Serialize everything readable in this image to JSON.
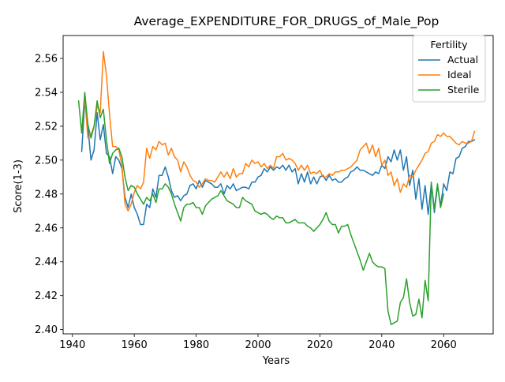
{
  "chart_data": {
    "type": "line",
    "title": "Average_EXPENDITURE_FOR_DRUGS_of_Male_Pop",
    "xlabel": "Years",
    "ylabel": "Score(1-3)",
    "xlim": [
      1937,
      2076
    ],
    "ylim": [
      2.3975,
      2.5735
    ],
    "xticks": [
      1940,
      1960,
      1980,
      2000,
      2020,
      2040,
      2060
    ],
    "yticks": [
      2.4,
      2.42,
      2.44,
      2.46,
      2.48,
      2.5,
      2.52,
      2.54,
      2.56
    ],
    "ytick_labels": [
      "2.40",
      "2.42",
      "2.44",
      "2.46",
      "2.48",
      "2.50",
      "2.52",
      "2.54",
      "2.56"
    ],
    "grid": false,
    "legend": {
      "title": "Fertility",
      "placement": "top-right"
    },
    "series": [
      {
        "name": "Actual",
        "color": "#1f77b4",
        "x": [
          1943,
          1944,
          1945,
          1946,
          1947,
          1948,
          1949,
          1950,
          1951,
          1952,
          1953,
          1954,
          1955,
          1956,
          1957,
          1958,
          1959,
          1960,
          1961,
          1962,
          1963,
          1964,
          1965,
          1966,
          1967,
          1968,
          1969,
          1970,
          1971,
          1972,
          1973,
          1974,
          1975,
          1976,
          1977,
          1978,
          1979,
          1980,
          1981,
          1982,
          1983,
          1984,
          1985,
          1986,
          1987,
          1988,
          1989,
          1990,
          1991,
          1992,
          1993,
          1994,
          1995,
          1996,
          1997,
          1998,
          1999,
          2000,
          2001,
          2002,
          2003,
          2004,
          2005,
          2006,
          2007,
          2008,
          2009,
          2010,
          2011,
          2012,
          2013,
          2014,
          2015,
          2016,
          2017,
          2018,
          2019,
          2020,
          2021,
          2022,
          2023,
          2024,
          2025,
          2026,
          2027,
          2028,
          2029,
          2030,
          2031,
          2032,
          2033,
          2034,
          2035,
          2036,
          2037,
          2038,
          2039,
          2040,
          2041,
          2042,
          2043,
          2044,
          2045,
          2046,
          2047,
          2048,
          2049,
          2050,
          2051,
          2052,
          2053,
          2054,
          2055,
          2056,
          2057,
          2058,
          2059,
          2060,
          2061,
          2062,
          2063,
          2064,
          2065,
          2066,
          2067,
          2068,
          2069,
          2070
        ],
        "y": [
          2.505,
          2.535,
          2.52,
          2.5,
          2.506,
          2.528,
          2.512,
          2.521,
          2.504,
          2.502,
          2.492,
          2.502,
          2.5,
          2.495,
          2.478,
          2.472,
          2.48,
          2.472,
          2.468,
          2.462,
          2.462,
          2.474,
          2.472,
          2.483,
          2.478,
          2.491,
          2.491,
          2.496,
          2.49,
          2.482,
          2.478,
          2.479,
          2.476,
          2.479,
          2.48,
          2.485,
          2.486,
          2.483,
          2.488,
          2.484,
          2.488,
          2.487,
          2.486,
          2.484,
          2.484,
          2.486,
          2.48,
          2.485,
          2.483,
          2.486,
          2.482,
          2.483,
          2.484,
          2.484,
          2.483,
          2.487,
          2.487,
          2.49,
          2.491,
          2.495,
          2.493,
          2.496,
          2.494,
          2.496,
          2.495,
          2.497,
          2.494,
          2.497,
          2.493,
          2.495,
          2.486,
          2.492,
          2.487,
          2.493,
          2.486,
          2.49,
          2.486,
          2.49,
          2.491,
          2.488,
          2.491,
          2.488,
          2.489,
          2.487,
          2.487,
          2.489,
          2.49,
          2.493,
          2.494,
          2.496,
          2.494,
          2.494,
          2.493,
          2.492,
          2.491,
          2.493,
          2.492,
          2.497,
          2.495,
          2.502,
          2.499,
          2.506,
          2.5,
          2.506,
          2.494,
          2.502,
          2.485,
          2.494,
          2.477,
          2.489,
          2.471,
          2.485,
          2.468,
          2.486,
          2.469,
          2.485,
          2.473,
          2.486,
          2.482,
          2.493,
          2.492,
          2.501,
          2.502,
          2.507,
          2.508,
          2.511,
          2.511,
          2.512
        ]
      },
      {
        "name": "Ideal",
        "color": "#ff7f0e",
        "x": [
          1943,
          1944,
          1945,
          1946,
          1947,
          1948,
          1949,
          1950,
          1951,
          1952,
          1953,
          1954,
          1955,
          1956,
          1957,
          1958,
          1959,
          1960,
          1961,
          1962,
          1963,
          1964,
          1965,
          1966,
          1967,
          1968,
          1969,
          1970,
          1971,
          1972,
          1973,
          1974,
          1975,
          1976,
          1977,
          1978,
          1979,
          1980,
          1981,
          1982,
          1983,
          1984,
          1985,
          1986,
          1987,
          1988,
          1989,
          1990,
          1991,
          1992,
          1993,
          1994,
          1995,
          1996,
          1997,
          1998,
          1999,
          2000,
          2001,
          2002,
          2003,
          2004,
          2005,
          2006,
          2007,
          2008,
          2009,
          2010,
          2011,
          2012,
          2013,
          2014,
          2015,
          2016,
          2017,
          2018,
          2019,
          2020,
          2021,
          2022,
          2023,
          2024,
          2025,
          2026,
          2027,
          2028,
          2029,
          2030,
          2031,
          2032,
          2033,
          2034,
          2035,
          2036,
          2037,
          2038,
          2039,
          2040,
          2041,
          2042,
          2043,
          2044,
          2045,
          2046,
          2047,
          2048,
          2049,
          2050,
          2051,
          2052,
          2053,
          2054,
          2055,
          2056,
          2057,
          2058,
          2059,
          2060,
          2061,
          2062,
          2063,
          2064,
          2065,
          2066,
          2067,
          2068,
          2069,
          2070
        ],
        "y": [
          2.516,
          2.537,
          2.513,
          2.515,
          2.52,
          2.532,
          2.528,
          2.564,
          2.55,
          2.527,
          2.508,
          2.508,
          2.506,
          2.497,
          2.474,
          2.47,
          2.474,
          2.481,
          2.485,
          2.483,
          2.487,
          2.507,
          2.501,
          2.508,
          2.506,
          2.511,
          2.509,
          2.51,
          2.503,
          2.507,
          2.502,
          2.5,
          2.493,
          2.499,
          2.496,
          2.491,
          2.488,
          2.487,
          2.484,
          2.486,
          2.489,
          2.488,
          2.488,
          2.487,
          2.49,
          2.493,
          2.49,
          2.493,
          2.489,
          2.495,
          2.49,
          2.492,
          2.492,
          2.498,
          2.496,
          2.5,
          2.498,
          2.499,
          2.496,
          2.498,
          2.495,
          2.497,
          2.495,
          2.502,
          2.502,
          2.504,
          2.5,
          2.501,
          2.5,
          2.498,
          2.494,
          2.497,
          2.494,
          2.497,
          2.492,
          2.493,
          2.492,
          2.494,
          2.49,
          2.49,
          2.492,
          2.491,
          2.493,
          2.493,
          2.494,
          2.494,
          2.495,
          2.496,
          2.498,
          2.5,
          2.506,
          2.508,
          2.51,
          2.504,
          2.509,
          2.502,
          2.507,
          2.497,
          2.5,
          2.491,
          2.493,
          2.485,
          2.489,
          2.481,
          2.486,
          2.484,
          2.491,
          2.49,
          2.494,
          2.497,
          2.5,
          2.504,
          2.505,
          2.51,
          2.511,
          2.515,
          2.514,
          2.516,
          2.514,
          2.514,
          2.512,
          2.51,
          2.509,
          2.511,
          2.51,
          2.51,
          2.511,
          2.517
        ]
      },
      {
        "name": "Sterile",
        "color": "#2ca02c",
        "x": [
          1942,
          1943,
          1944,
          1945,
          1946,
          1947,
          1948,
          1949,
          1950,
          1951,
          1952,
          1953,
          1954,
          1955,
          1956,
          1957,
          1958,
          1959,
          1960,
          1961,
          1962,
          1963,
          1964,
          1965,
          1966,
          1967,
          1968,
          1969,
          1970,
          1971,
          1972,
          1973,
          1974,
          1975,
          1976,
          1977,
          1978,
          1979,
          1980,
          1981,
          1982,
          1983,
          1984,
          1985,
          1986,
          1987,
          1988,
          1989,
          1990,
          1991,
          1992,
          1993,
          1994,
          1995,
          1996,
          1997,
          1998,
          1999,
          2000,
          2001,
          2002,
          2003,
          2004,
          2005,
          2006,
          2007,
          2008,
          2009,
          2010,
          2011,
          2012,
          2013,
          2014,
          2015,
          2016,
          2017,
          2018,
          2019,
          2020,
          2021,
          2022,
          2023,
          2024,
          2025,
          2026,
          2027,
          2028,
          2029,
          2030,
          2031,
          2032,
          2033,
          2034,
          2035,
          2036,
          2037,
          2038,
          2039,
          2040,
          2041,
          2042,
          2043,
          2044,
          2045,
          2046,
          2047,
          2048,
          2049,
          2050,
          2051,
          2052,
          2053,
          2054,
          2055,
          2056,
          2057,
          2058,
          2059,
          2060
        ],
        "y": [
          2.535,
          2.516,
          2.54,
          2.521,
          2.513,
          2.52,
          2.535,
          2.525,
          2.53,
          2.512,
          2.498,
          2.504,
          2.506,
          2.507,
          2.502,
          2.49,
          2.482,
          2.485,
          2.484,
          2.48,
          2.477,
          2.474,
          2.478,
          2.476,
          2.48,
          2.475,
          2.483,
          2.483,
          2.486,
          2.484,
          2.48,
          2.474,
          2.469,
          2.464,
          2.472,
          2.474,
          2.474,
          2.475,
          2.472,
          2.472,
          2.468,
          2.473,
          2.475,
          2.477,
          2.478,
          2.479,
          2.482,
          2.479,
          2.476,
          2.475,
          2.474,
          2.472,
          2.472,
          2.478,
          2.476,
          2.475,
          2.474,
          2.47,
          2.469,
          2.468,
          2.469,
          2.468,
          2.466,
          2.465,
          2.467,
          2.466,
          2.466,
          2.463,
          2.463,
          2.464,
          2.465,
          2.463,
          2.463,
          2.463,
          2.461,
          2.46,
          2.458,
          2.46,
          2.462,
          2.465,
          2.469,
          2.464,
          2.462,
          2.462,
          2.457,
          2.461,
          2.461,
          2.462,
          2.456,
          2.451,
          2.446,
          2.441,
          2.435,
          2.44,
          2.445,
          2.44,
          2.438,
          2.437,
          2.437,
          2.436,
          2.411,
          2.403,
          2.404,
          2.405,
          2.416,
          2.419,
          2.43,
          2.416,
          2.408,
          2.409,
          2.418,
          2.407,
          2.429,
          2.417,
          2.487,
          2.471,
          2.486,
          2.472,
          2.48
        ]
      }
    ]
  }
}
